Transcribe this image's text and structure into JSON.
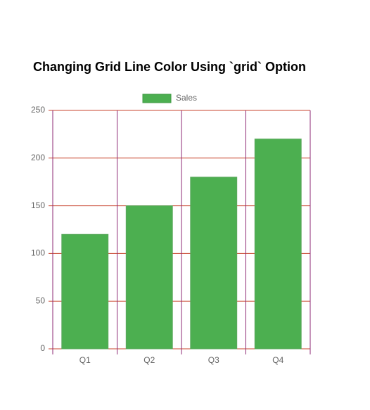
{
  "chart_data": {
    "type": "bar",
    "title": "Changing Grid Line Color Using `grid` Option",
    "categories": [
      "Q1",
      "Q2",
      "Q3",
      "Q4"
    ],
    "series": [
      {
        "name": "Sales",
        "color": "#4caf50",
        "values": [
          120,
          150,
          180,
          220
        ]
      }
    ],
    "ylim": [
      0,
      250
    ],
    "yticks": [
      0,
      50,
      100,
      150,
      200,
      250
    ],
    "grid": true,
    "y_grid_color": "#c8452f",
    "x_grid_color": "#8e2a75",
    "legend": "top"
  }
}
